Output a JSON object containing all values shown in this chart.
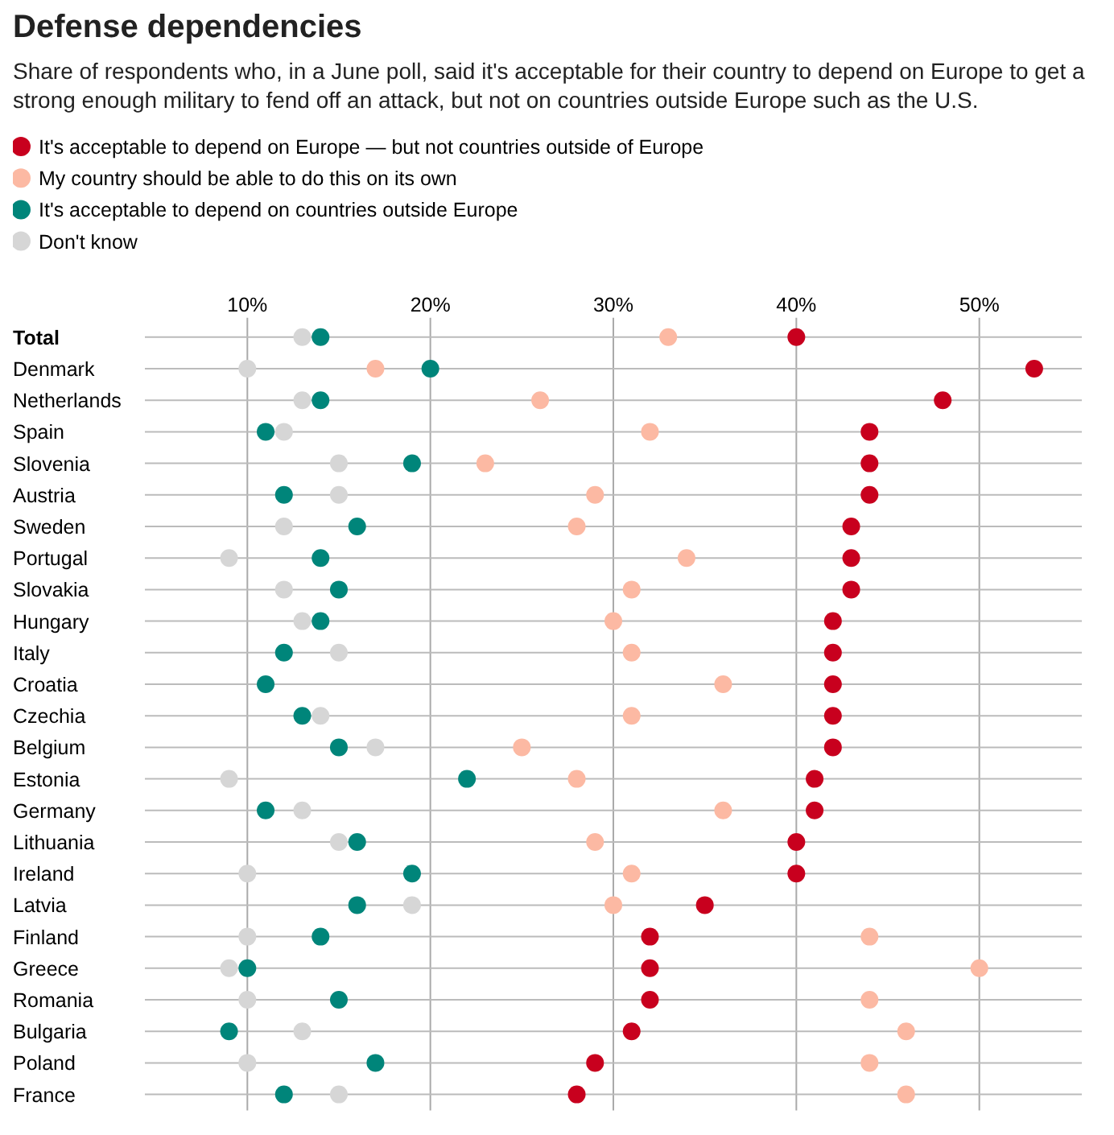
{
  "chart_data": {
    "type": "scatter",
    "title": "Defense dependencies",
    "subtitle": "Share of respondents who, in a June poll, said it's acceptable for their country to depend on Europe to get a strong enough military to fend off an attack, but not on countries outside Europe such as the U.S.",
    "orientation": "horizontal",
    "marker": "circle",
    "grid": "x",
    "legend": "top left",
    "categories": [
      "Total",
      "Denmark",
      "Netherlands",
      "Spain",
      "Slovenia",
      "Austria",
      "Sweden",
      "Portugal",
      "Slovakia",
      "Hungary",
      "Italy",
      "Croatia",
      "Czechia",
      "Belgium",
      "Estonia",
      "Germany",
      "Lithuania",
      "Ireland",
      "Latvia",
      "Finland",
      "Greece",
      "Romania",
      "Bulgaria",
      "Poland",
      "France"
    ],
    "xlim": [
      4.4,
      55.6
    ],
    "xticks": [
      {
        "value": 10,
        "label": "10%"
      },
      {
        "value": 20,
        "label": "20%"
      },
      {
        "value": 30,
        "label": "30%"
      },
      {
        "value": 40,
        "label": "40%"
      },
      {
        "value": 50,
        "label": "50%"
      }
    ],
    "series": [
      {
        "name": "It's acceptable to depend on Europe — but not countries outside of Europe",
        "color": "#c8001e",
        "values": [
          40,
          53,
          48,
          44,
          44,
          44,
          43,
          43,
          43,
          42,
          42,
          42,
          42,
          42,
          41,
          41,
          40,
          40,
          35,
          32,
          32,
          32,
          31,
          29,
          28
        ]
      },
      {
        "name": "My country should be able to do this on its own",
        "color": "#fcb9a3",
        "values": [
          33,
          17,
          26,
          32,
          23,
          29,
          28,
          34,
          31,
          30,
          31,
          36,
          31,
          25,
          28,
          36,
          29,
          31,
          30,
          44,
          50,
          44,
          46,
          44,
          46
        ]
      },
      {
        "name": "It's acceptable to depend on countries outside Europe",
        "color": "#00857a",
        "values": [
          14,
          20,
          14,
          11,
          19,
          12,
          16,
          14,
          15,
          14,
          12,
          11,
          13,
          15,
          22,
          11,
          16,
          19,
          16,
          14,
          10,
          15,
          9,
          17,
          12
        ]
      },
      {
        "name": "Don't know",
        "color": "#d6d6d6",
        "values": [
          13,
          10,
          13,
          12,
          15,
          15,
          12,
          9,
          12,
          13,
          15,
          null,
          14,
          17,
          9,
          13,
          15,
          10,
          19,
          10,
          9,
          10,
          13,
          10,
          15
        ]
      }
    ]
  }
}
